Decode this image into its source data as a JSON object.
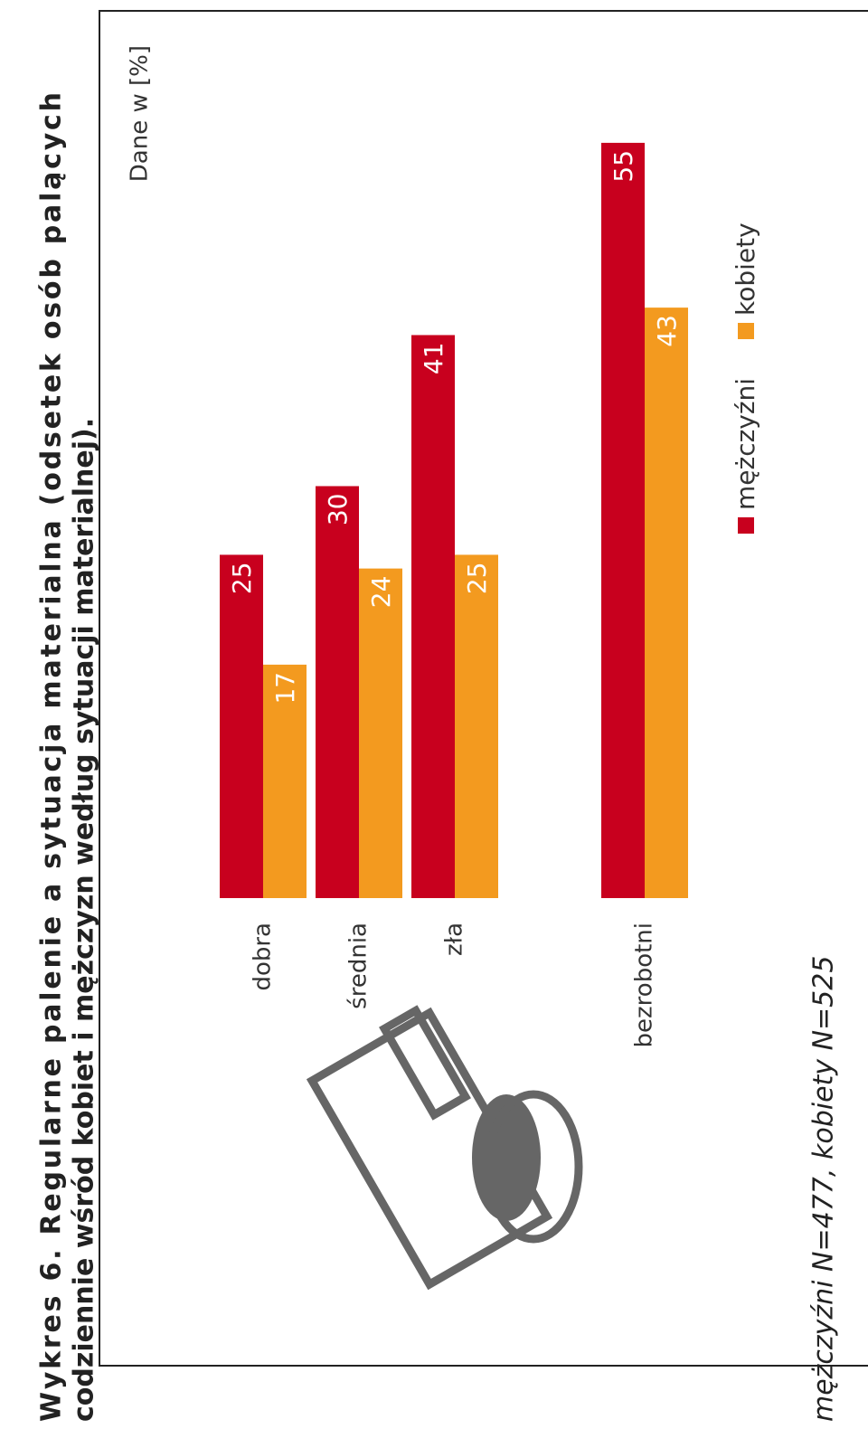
{
  "chart_data": {
    "type": "bar",
    "title": [
      "Wykres 6. Regularne palenie a sytuacja materialna (odsetek osób palących",
      "codziennie wśród kobiet i mężczyzn według sytuacji materialnej)."
    ],
    "subtitle": "Dane w [%]",
    "categories": [
      "dobra",
      "średnia",
      "zła",
      "bezrobotni"
    ],
    "series": [
      {
        "name": "mężczyźni",
        "color": "#c8001e",
        "values": [
          25,
          30,
          41,
          55
        ]
      },
      {
        "name": "kobiety",
        "color": "#f39a1f",
        "values": [
          17,
          24,
          25,
          43
        ]
      }
    ],
    "ylim": [
      0,
      60
    ],
    "footnote": "mężczyźni N=477, kobiety N=525"
  }
}
